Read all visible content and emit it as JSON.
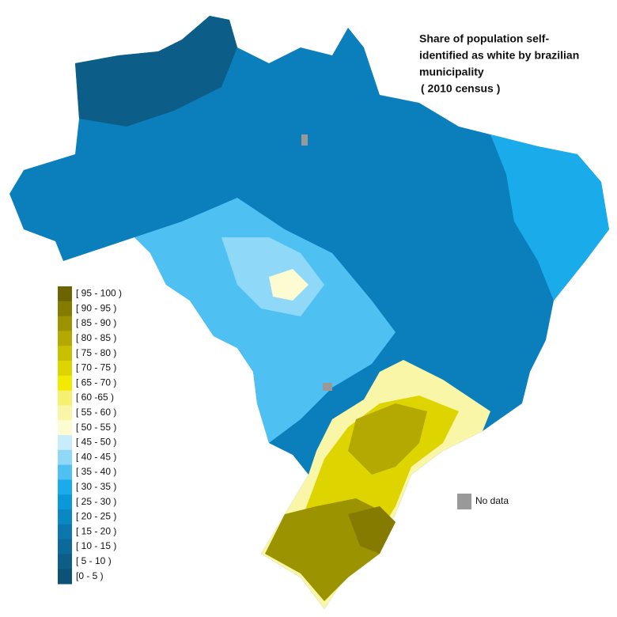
{
  "title": {
    "lines": [
      "Share of population self-",
      "identified as white by brazilian",
      "municipality",
      "( 2010 census )"
    ]
  },
  "legend": {
    "items": [
      {
        "label": "[ 95 - 100 )",
        "color": "#6b6400"
      },
      {
        "label": "[ 90 - 95 )",
        "color": "#847b00"
      },
      {
        "label": "[ 85 - 90 )",
        "color": "#9c9300"
      },
      {
        "label": "[ 80 - 85 )",
        "color": "#b3a900"
      },
      {
        "label": "[ 75 - 80 )",
        "color": "#c9c000"
      },
      {
        "label": "[ 70 - 75 )",
        "color": "#ddd400"
      },
      {
        "label": "[ 65 - 70 )",
        "color": "#f2ea00"
      },
      {
        "label": "[ 60 -65 )",
        "color": "#f6f070"
      },
      {
        "label": "[ 55 - 60 )",
        "color": "#faf6a8"
      },
      {
        "label": "[ 50 - 55 )",
        "color": "#fdfbd2"
      },
      {
        "label": "[ 45 - 50 )",
        "color": "#c8ecfa"
      },
      {
        "label": "[ 40 - 45 )",
        "color": "#8fd8f7"
      },
      {
        "label": "[ 35 - 40 )",
        "color": "#4fc0f2"
      },
      {
        "label": "[ 30 - 35 )",
        "color": "#1aabeb"
      },
      {
        "label": "[ 25 - 30 )",
        "color": "#0a98d8"
      },
      {
        "label": "[ 20 - 25 )",
        "color": "#0a88c4"
      },
      {
        "label": "[ 15 - 20 )",
        "color": "#0a78ae"
      },
      {
        "label": "[ 10 - 15 )",
        "color": "#0b6a9a"
      },
      {
        "label": "[ 5 - 10 )",
        "color": "#0c5e88"
      },
      {
        "label": "[0 - 5 )",
        "color": "#0d5276"
      }
    ]
  },
  "no_data": {
    "label": "No data",
    "color": "#999999"
  }
}
